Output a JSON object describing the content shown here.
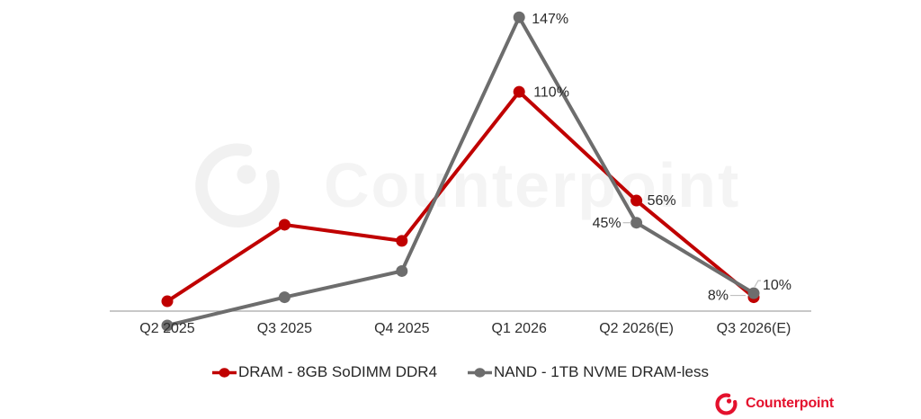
{
  "watermark": {
    "text": "Counterpoint"
  },
  "brand": {
    "name": "Counterpoint"
  },
  "colors": {
    "dram_line": "#c00000",
    "nand_line": "#6d6d6d",
    "brand_red": "#e4112d",
    "watermark_gray": "#f4f4f4",
    "axis_gray": "#a8a8a8",
    "data_label": "#2b2b2b",
    "leader_gray": "#c0c0c0"
  },
  "chart_data": {
    "type": "line",
    "categories": [
      "Q2 2025",
      "Q3 2025",
      "Q4 2025",
      "Q1 2026",
      "Q2 2026(E)",
      "Q3 2026(E)"
    ],
    "series": [
      {
        "name": "DRAM - 8GB SoDIMM DDR4",
        "color": "#c00000",
        "values": [
          6,
          44,
          36,
          110,
          56,
          8
        ],
        "point_labels": [
          null,
          null,
          null,
          "110%",
          "56%",
          "8%"
        ]
      },
      {
        "name": "NAND - 1TB NVME DRAM-less",
        "color": "#6d6d6d",
        "values": [
          -6,
          8,
          21,
          147,
          45,
          10
        ],
        "point_labels": [
          null,
          null,
          null,
          "147%",
          "45%",
          "10%"
        ]
      }
    ],
    "unit": "%",
    "title": "",
    "xlabel": "",
    "ylabel": "",
    "ylim": [
      -20,
      160
    ],
    "grid": false,
    "legend_position": "bottom"
  }
}
